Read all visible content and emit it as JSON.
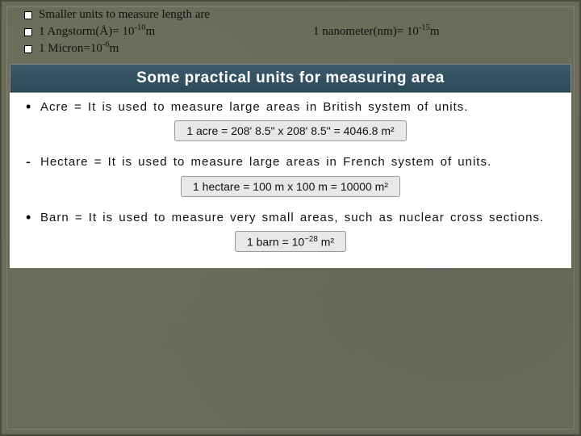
{
  "intro": {
    "line1": "Smaller units to measure length are",
    "line2_left_pre": " 1 Angstorm(Å)= 10",
    "line2_left_exp": "-10",
    "line2_left_post": "m",
    "line2_right_pre": "1 nanometer(nm)= 10",
    "line2_right_exp": "-15",
    "line2_right_post": "m",
    "line3_pre": "1 Micron=10",
    "line3_exp": "-6",
    "line3_post": "m"
  },
  "panel": {
    "title": "Some practical units for measuring area",
    "items": [
      {
        "bullet": "•",
        "text": "Acre = It is used to measure large areas in British system of units.",
        "formula": "1 acre = 208' 8.5\" x 208' 8.5\" = 4046.8 m²"
      },
      {
        "bullet": "-",
        "text": "Hectare = It is used to measure large areas in French system of units.",
        "formula": "1 hectare = 100 m x 100 m = 10000 m²"
      },
      {
        "bullet": "•",
        "text": "Barn = It is used to measure very small areas, such as nuclear cross sections.",
        "formula_pre": "1 barn = 10",
        "formula_exp": "−28",
        "formula_post": " m²"
      }
    ]
  },
  "style": {
    "slide_bg": "#6b6b5a",
    "panel_bg": "#ffffff",
    "header_bg": "#2d4a58",
    "formula_bg": "#e8e8e8",
    "text_color": "#111111"
  }
}
